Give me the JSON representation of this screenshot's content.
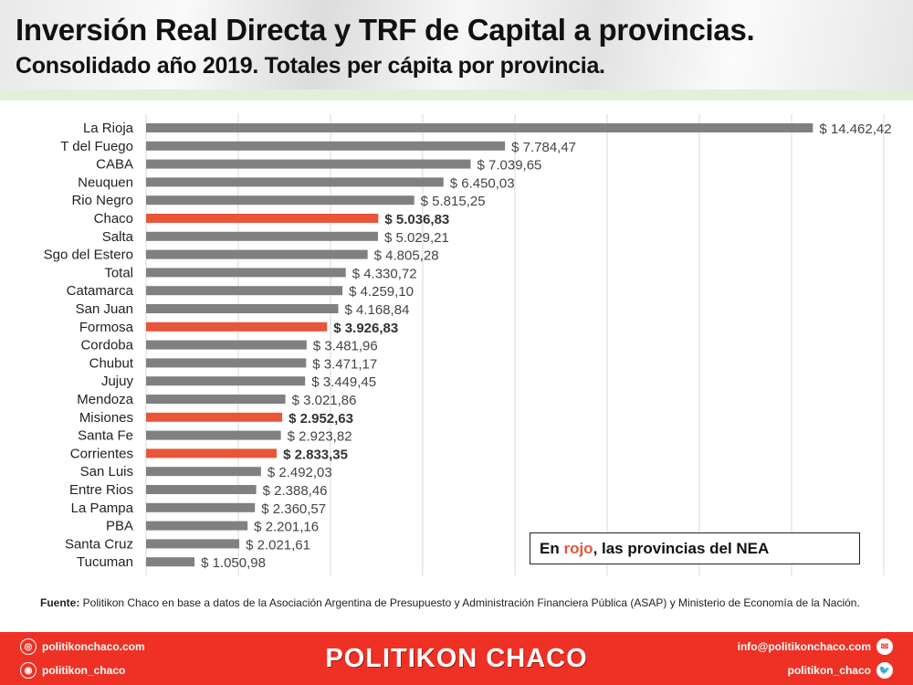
{
  "header": {
    "title": "Inversión Real Directa y TRF de Capital a provincias.",
    "subtitle": "Consolidado año 2019. Totales per cápita por provincia."
  },
  "colors": {
    "bar": "#808080",
    "highlight": "#e8563a",
    "footer": "#ee3124"
  },
  "chart_data": {
    "type": "bar",
    "orientation": "horizontal",
    "title": "Inversión Real Directa y TRF de Capital a provincias.",
    "xlim": [
      0,
      16000
    ],
    "grid": true,
    "categories": [
      "La Rioja",
      "T del Fuego",
      "CABA",
      "Neuquen",
      "Rio Negro",
      "Chaco",
      "Salta",
      "Sgo del Estero",
      "Total",
      "Catamarca",
      "San Juan",
      "Formosa",
      "Cordoba",
      "Chubut",
      "Jujuy",
      "Mendoza",
      "Misiones",
      "Santa Fe",
      "Corrientes",
      "San Luis",
      "Entre Rios",
      "La Pampa",
      "PBA",
      "Santa Cruz",
      "Tucuman"
    ],
    "values": [
      14462.42,
      7784.47,
      7039.65,
      6450.03,
      5815.25,
      5036.83,
      5029.21,
      4805.28,
      4330.72,
      4259.1,
      4168.84,
      3926.83,
      3481.96,
      3471.17,
      3449.45,
      3021.86,
      2952.63,
      2923.82,
      2833.35,
      2492.03,
      2388.46,
      2360.57,
      2201.16,
      2021.61,
      1050.98
    ],
    "labels": [
      "$ 14.462,42",
      "$ 7.784,47",
      "$ 7.039,65",
      "$ 6.450,03",
      "$ 5.815,25",
      "$ 5.036,83",
      "$ 5.029,21",
      "$ 4.805,28",
      "$ 4.330,72",
      "$ 4.259,10",
      "$ 4.168,84",
      "$ 3.926,83",
      "$ 3.481,96",
      "$ 3.471,17",
      "$ 3.449,45",
      "$ 3.021,86",
      "$ 2.952,63",
      "$ 2.923,82",
      "$ 2.833,35",
      "$ 2.492,03",
      "$ 2.388,46",
      "$ 2.360,57",
      "$ 2.201,16",
      "$ 2.021,61",
      "$ 1.050,98"
    ],
    "highlighted": [
      "Chaco",
      "Formosa",
      "Misiones",
      "Corrientes"
    ]
  },
  "legend": {
    "prefix": "En ",
    "highlight_word": "rojo",
    "suffix": ", las provincias del NEA"
  },
  "source": {
    "label": "Fuente:",
    "text": " Politikon Chaco en base a datos de la Asociación Argentina de Presupuesto y Administración Financiera Pública (ASAP) y Ministerio de Economía de la Nación."
  },
  "footer": {
    "website": "politikonchaco.com",
    "instagram": "politikon_chaco",
    "brand": "POLITIKON CHACO",
    "email": "info@politikonchaco.com",
    "twitter": "politikon_chaco"
  }
}
